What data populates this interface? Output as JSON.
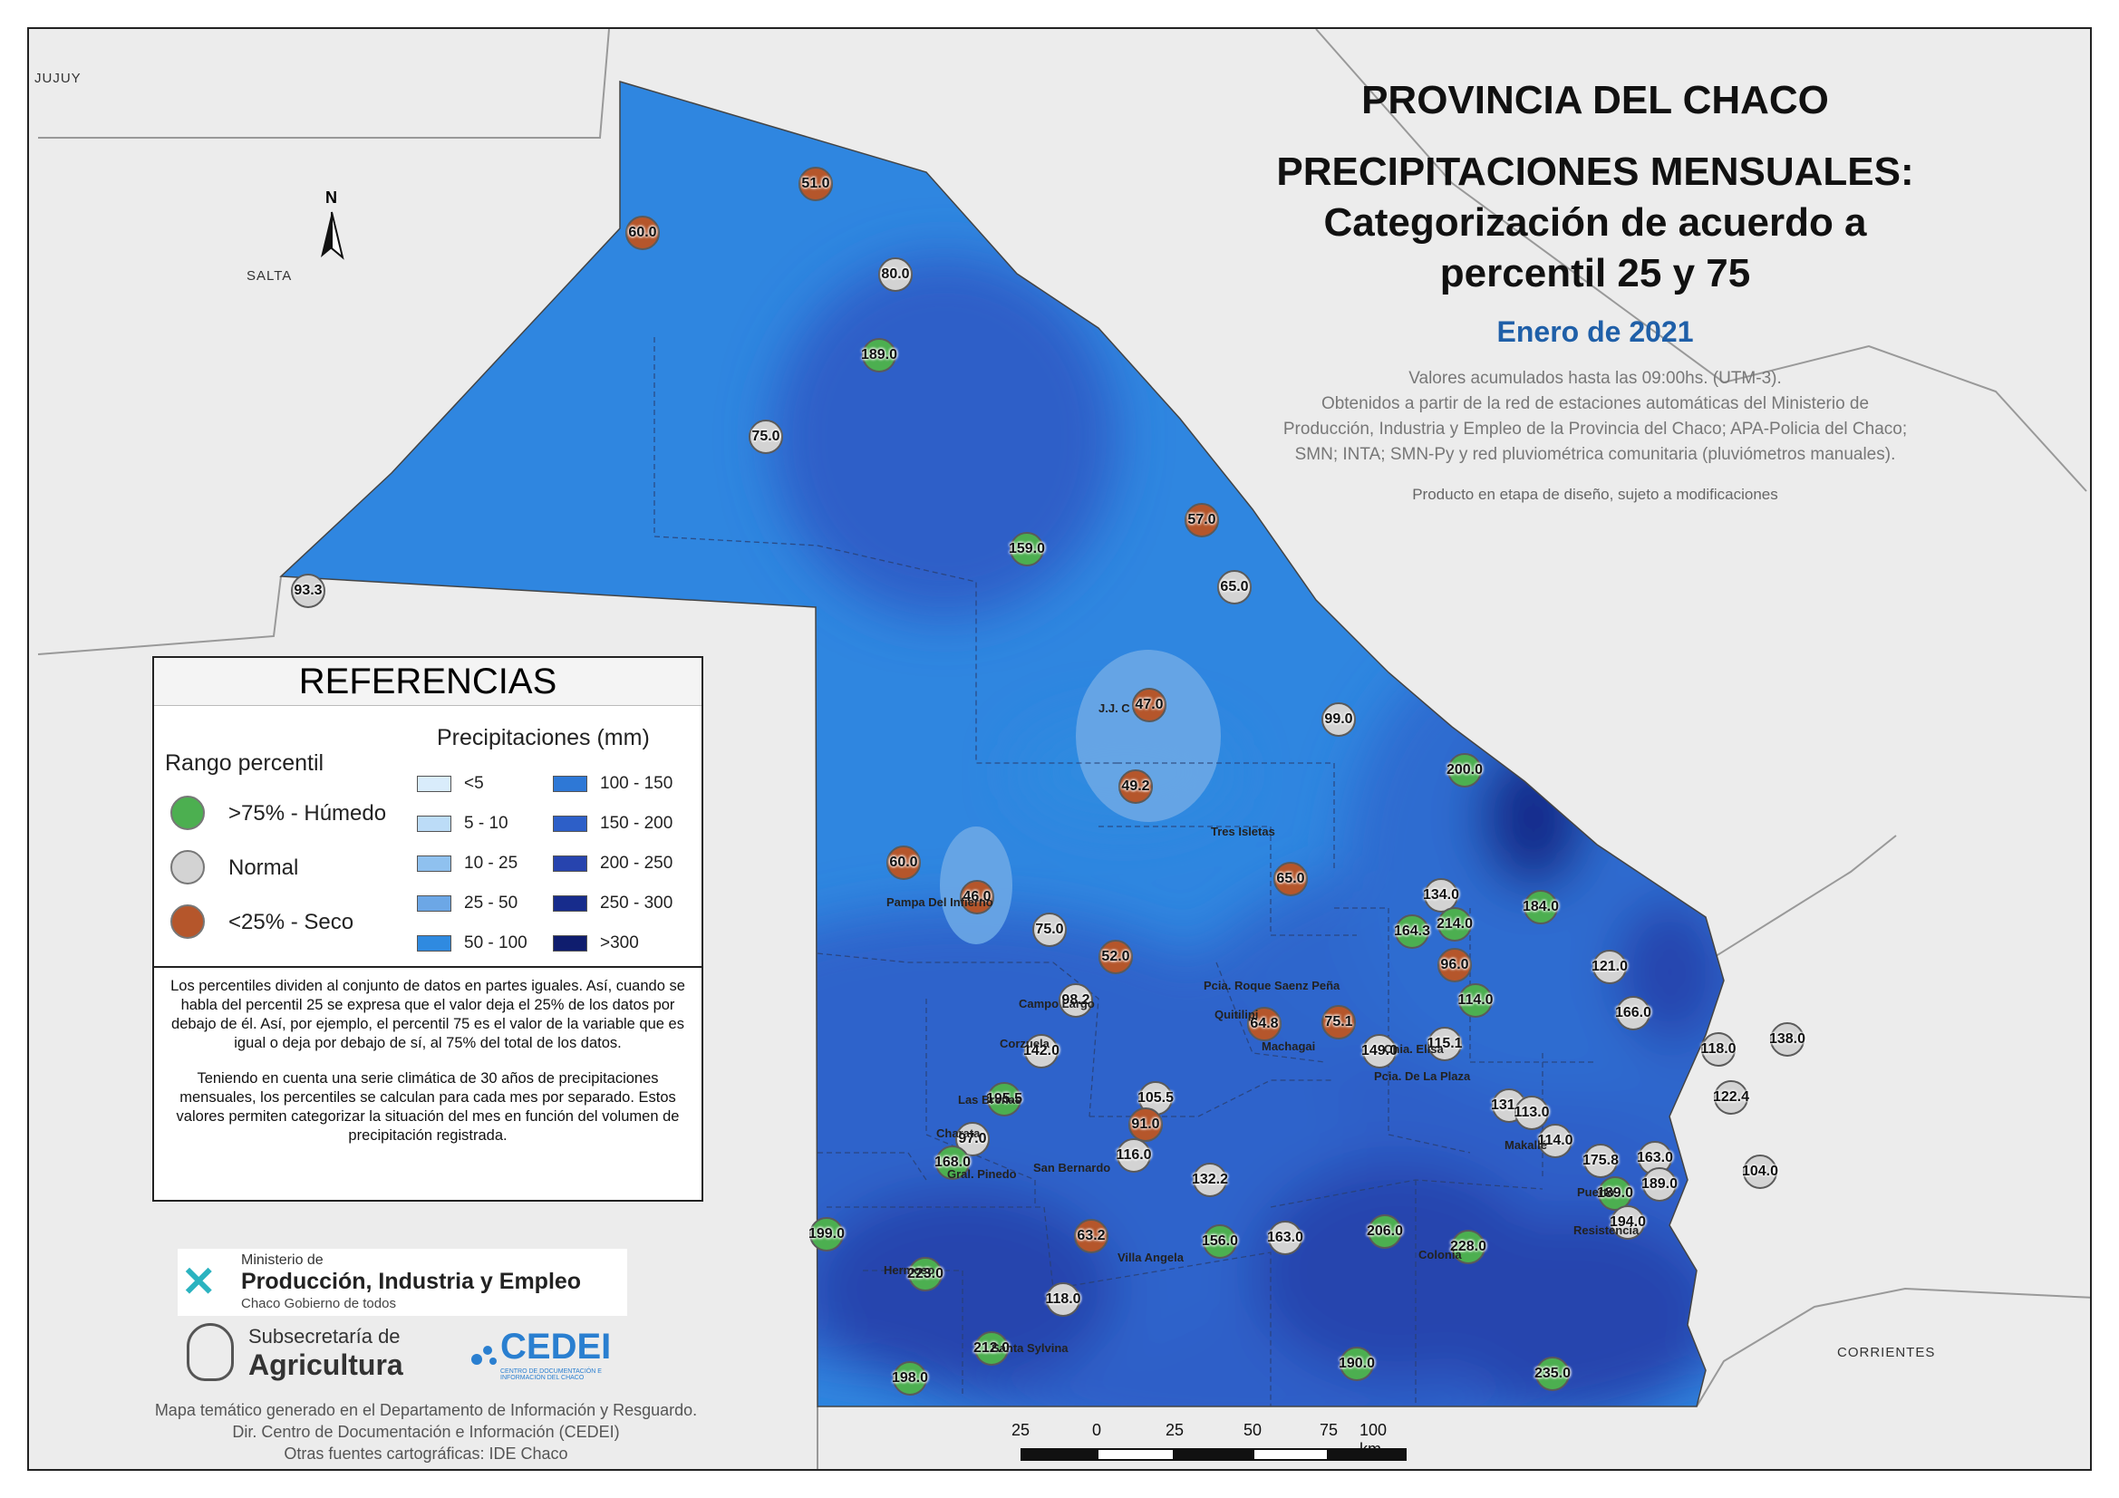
{
  "title": {
    "line1": "PROVINCIA DEL CHACO",
    "line2": "PRECIPITACIONES MENSUALES:",
    "line3": "Categorización de acuerdo a",
    "line4": "percentil 25 y 75",
    "month": "Enero de 2021"
  },
  "notes": {
    "line1": "Valores acumulados hasta las 09:00hs. (UTM-3).",
    "line2": "Obtenidos a partir de la red de estaciones automáticas del Ministerio de",
    "line3": "Producción, Industria y Empleo de la Provincia del Chaco; APA-Policia del Chaco;",
    "line4": "SMN; INTA; SMN-Py y red pluviométrica comunitaria (pluviómetros manuales).",
    "design": "Producto en etapa de diseño, sujeto a modificaciones"
  },
  "neighbors": {
    "jujuy": "JUJUY",
    "salta": "SALTA",
    "corrientes": "CORRIENTES"
  },
  "north_arrow": "N",
  "legend": {
    "title": "REFERENCIAS",
    "percentile_heading": "Rango percentil",
    "categories": [
      {
        "label": ">75% - Húmedo",
        "color": "#4caf50"
      },
      {
        "label": "Normal",
        "color": "#d3d3d3"
      },
      {
        "label": "<25% - Seco",
        "color": "#b5562b"
      }
    ],
    "precip_heading": "Precipitaciones (mm)",
    "classes": [
      {
        "label": "<5",
        "color": "#d9ecfb"
      },
      {
        "label": "5 - 10",
        "color": "#bcdcf7"
      },
      {
        "label": "10 - 25",
        "color": "#8fc1ef"
      },
      {
        "label": "25 - 50",
        "color": "#6ca7e6"
      },
      {
        "label": "50 - 100",
        "color": "#2f8ae0"
      },
      {
        "label": "100 - 150",
        "color": "#2e78d6"
      },
      {
        "label": "150 - 200",
        "color": "#2d5fc8"
      },
      {
        "label": "200 - 250",
        "color": "#2744ae"
      },
      {
        "label": "250 - 300",
        "color": "#172c8c"
      },
      {
        "label": ">300",
        "color": "#0f1d6e"
      }
    ]
  },
  "explanation": {
    "p1": "Los percentiles dividen al conjunto de datos en partes iguales. Así, cuando se habla del percentil 25 se expresa que el valor deja el 25% de los datos por debajo de él. Así, por ejemplo, el percentil 75 es el valor de la variable que es igual o deja por debajo de sí, al 75% del total de los datos.",
    "p2": "Teniendo en cuenta una serie climática de 30 años de precipitaciones mensuales, los percentiles se calculan para cada mes por separado. Estos valores permiten categorizar la situación del mes en función del volumen de precipitación registrada."
  },
  "logos": {
    "ministerio_small": "Ministerio de",
    "ministerio_big": "Producción, Industria y Empleo",
    "ministerio_sub": "Chaco Gobierno de todos",
    "subsec_small": "Subsecretaría de",
    "subsec_big": "Agricultura",
    "cedei": "CEDEI",
    "cedei_sub": "CENTRO DE DOCUMENTACIÓN E INFORMACIÓN DEL CHACO"
  },
  "credits": {
    "line1": "Mapa temático generado en el Departamento de Información y Resguardo.",
    "line2": "Dir. Centro de Documentación e Información (CEDEI)",
    "line3": "Otras fuentes cartográficas: IDE Chaco"
  },
  "scale_bar": {
    "labels": [
      "25",
      "0",
      "25",
      "50",
      "75",
      "100 km"
    ]
  },
  "towns": [
    {
      "name": "J.J. C"
    },
    {
      "name": "Tres Isletas"
    },
    {
      "name": "Pampa Del Infierno"
    },
    {
      "name": "Campo Largo"
    },
    {
      "name": "Corzuela"
    },
    {
      "name": "Pcia. Roque Saenz Peña"
    },
    {
      "name": "Quitilipi"
    },
    {
      "name": "Machagai"
    },
    {
      "name": "Cnia. Elisa"
    },
    {
      "name": "Pcia. De La Plaza"
    },
    {
      "name": "Las Breñas"
    },
    {
      "name": "Charata"
    },
    {
      "name": "Gral. Pinedo"
    },
    {
      "name": "San Bernardo"
    },
    {
      "name": "Makallé"
    },
    {
      "name": "Puerto"
    },
    {
      "name": "Resistencia"
    },
    {
      "name": "Villa Angela"
    },
    {
      "name": "Hermoso"
    },
    {
      "name": "Santa Sylvina"
    },
    {
      "name": "Colonia"
    }
  ],
  "stations": [
    {
      "value": "51.0",
      "category": "dry"
    },
    {
      "value": "60.0",
      "category": "dry"
    },
    {
      "value": "80.0",
      "category": "normal"
    },
    {
      "value": "189.0",
      "category": "wet"
    },
    {
      "value": "75.0",
      "category": "normal"
    },
    {
      "value": "93.3",
      "category": "normal"
    },
    {
      "value": "159.0",
      "category": "wet"
    },
    {
      "value": "57.0",
      "category": "dry"
    },
    {
      "value": "65.0",
      "category": "normal"
    },
    {
      "value": "47.0",
      "category": "dry"
    },
    {
      "value": "99.0",
      "category": "normal"
    },
    {
      "value": "49.2",
      "category": "dry"
    },
    {
      "value": "200.0",
      "category": "wet"
    },
    {
      "value": "60.0",
      "category": "dry"
    },
    {
      "value": "46.0",
      "category": "dry"
    },
    {
      "value": "65.0",
      "category": "dry"
    },
    {
      "value": "134.0",
      "category": "normal"
    },
    {
      "value": "184.0",
      "category": "wet"
    },
    {
      "value": "75.0",
      "category": "normal"
    },
    {
      "value": "164.3",
      "category": "wet"
    },
    {
      "value": "214.0",
      "category": "wet"
    },
    {
      "value": "52.0",
      "category": "dry"
    },
    {
      "value": "96.0",
      "category": "dry"
    },
    {
      "value": "121.0",
      "category": "normal"
    },
    {
      "value": "98.2",
      "category": "normal"
    },
    {
      "value": "114.0",
      "category": "wet"
    },
    {
      "value": "166.0",
      "category": "normal"
    },
    {
      "value": "64.8",
      "category": "dry"
    },
    {
      "value": "75.1",
      "category": "dry"
    },
    {
      "value": "142.0",
      "category": "normal"
    },
    {
      "value": "149.0",
      "category": "normal"
    },
    {
      "value": "115.1",
      "category": "normal"
    },
    {
      "value": "118.0",
      "category": "normal"
    },
    {
      "value": "138.0",
      "category": "normal"
    },
    {
      "value": "195.5",
      "category": "wet"
    },
    {
      "value": "105.5",
      "category": "normal"
    },
    {
      "value": "122.4",
      "category": "normal"
    },
    {
      "value": "131.0",
      "category": "normal"
    },
    {
      "value": "113.0",
      "category": "normal"
    },
    {
      "value": "97.0",
      "category": "normal"
    },
    {
      "value": "91.0",
      "category": "dry"
    },
    {
      "value": "114.0",
      "category": "normal"
    },
    {
      "value": "168.0",
      "category": "wet"
    },
    {
      "value": "116.0",
      "category": "normal"
    },
    {
      "value": "175.8",
      "category": "normal"
    },
    {
      "value": "163.0",
      "category": "normal"
    },
    {
      "value": "132.2",
      "category": "normal"
    },
    {
      "value": "189.0",
      "category": "wet"
    },
    {
      "value": "189.0",
      "category": "normal"
    },
    {
      "value": "104.0",
      "category": "normal"
    },
    {
      "value": "194.0",
      "category": "normal"
    },
    {
      "value": "199.0",
      "category": "wet"
    },
    {
      "value": "63.2",
      "category": "dry"
    },
    {
      "value": "156.0",
      "category": "wet"
    },
    {
      "value": "163.0",
      "category": "normal"
    },
    {
      "value": "206.0",
      "category": "wet"
    },
    {
      "value": "228.0",
      "category": "wet"
    },
    {
      "value": "223.0",
      "category": "wet"
    },
    {
      "value": "118.0",
      "category": "normal"
    },
    {
      "value": "212.0",
      "category": "wet"
    },
    {
      "value": "190.0",
      "category": "wet"
    },
    {
      "value": "235.0",
      "category": "wet"
    },
    {
      "value": "198.0",
      "category": "wet"
    }
  ]
}
